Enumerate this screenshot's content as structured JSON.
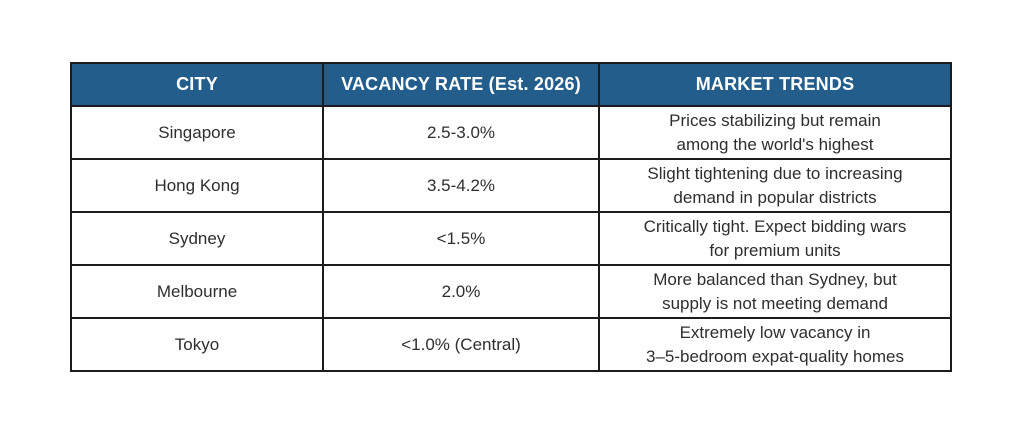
{
  "table": {
    "headers": {
      "city": "CITY",
      "rate": "VACANCY RATE (Est. 2026)",
      "trends": "MARKET TRENDS"
    },
    "rows": [
      {
        "city": "Singapore",
        "rate": "2.5-3.0%",
        "trend": [
          "Prices stabilizing but remain",
          "among the world's highest"
        ]
      },
      {
        "city": "Hong Kong",
        "rate": "3.5-4.2%",
        "trend": [
          "Slight tightening due to increasing",
          "demand in popular districts"
        ]
      },
      {
        "city": "Sydney",
        "rate": "<1.5%",
        "trend": [
          "Critically tight. Expect bidding wars",
          "for premium units"
        ]
      },
      {
        "city": "Melbourne",
        "rate": "2.0%",
        "trend": [
          "More balanced than Sydney, but",
          "supply is not meeting demand"
        ]
      },
      {
        "city": "Tokyo",
        "rate": "<1.0% (Central)",
        "trend": [
          "Extremely low vacancy in",
          "3–5-bedroom expat-quality homes"
        ]
      }
    ]
  },
  "colors": {
    "header_background": "#235d8c",
    "header_text": "#ffffff",
    "body_text": "#2e2e2e",
    "border": "#1c1c1c",
    "page_background": "#ffffff"
  }
}
